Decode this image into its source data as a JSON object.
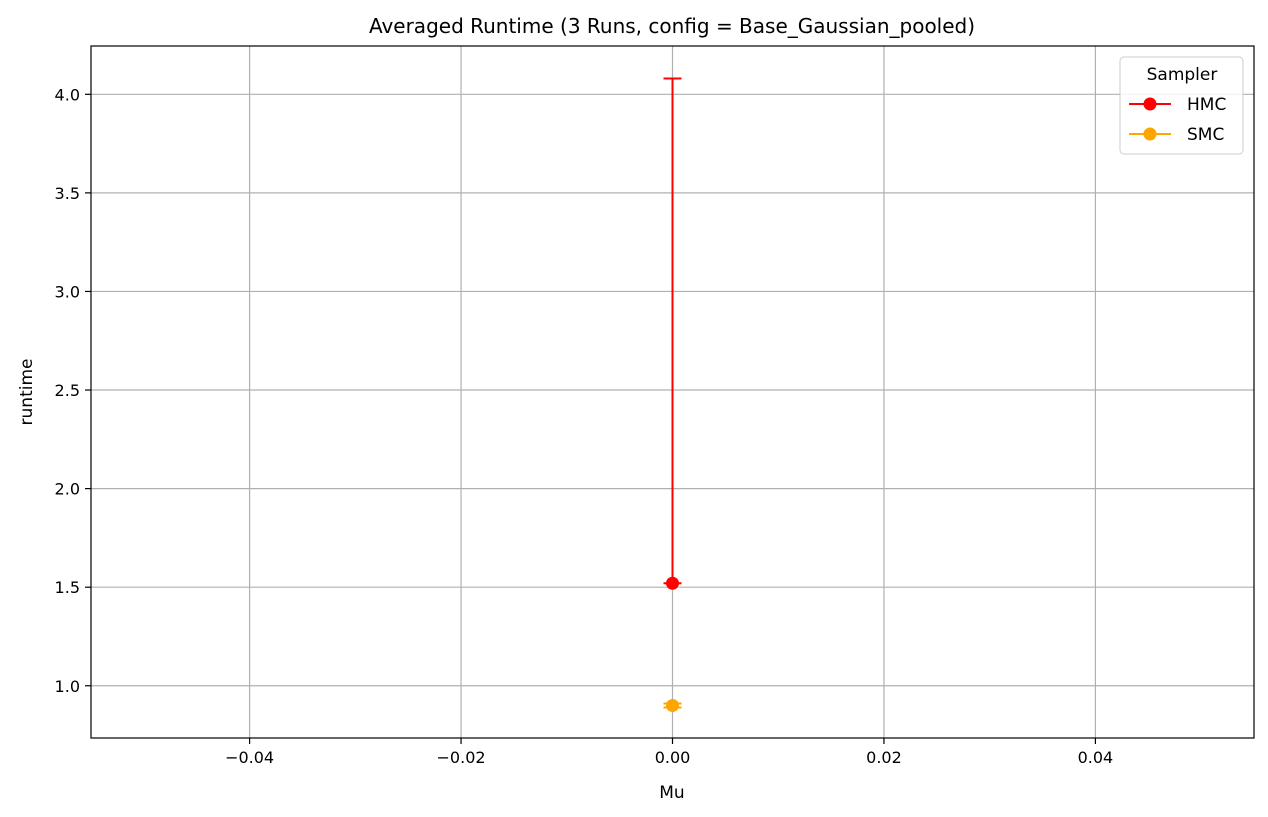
{
  "chart_data": {
    "type": "line",
    "title": "Averaged Runtime (3 Runs, config = Base_Gaussian_pooled)",
    "xlabel": "Mu",
    "ylabel": "runtime",
    "xlim": [
      -0.055,
      0.055
    ],
    "ylim": [
      0.735,
      4.245
    ],
    "xticks": [
      -0.04,
      -0.02,
      0.0,
      0.02,
      0.04
    ],
    "xtick_labels": [
      "−0.04",
      "−0.02",
      "0.00",
      "0.02",
      "0.04"
    ],
    "yticks": [
      1.0,
      1.5,
      2.0,
      2.5,
      3.0,
      3.5,
      4.0
    ],
    "ytick_labels": [
      "1.0",
      "1.5",
      "2.0",
      "2.5",
      "3.0",
      "3.5",
      "4.0"
    ],
    "grid": true,
    "legend": {
      "title": "Sampler",
      "position": "top-right"
    },
    "series": [
      {
        "name": "HMC",
        "color": "#ff0000",
        "x": [
          0.0
        ],
        "y": [
          1.52
        ],
        "err_low": [
          1.52
        ],
        "err_high": [
          4.08
        ]
      },
      {
        "name": "SMC",
        "color": "#ffa500",
        "x": [
          0.0
        ],
        "y": [
          0.9
        ],
        "err_low": [
          0.89
        ],
        "err_high": [
          0.91
        ]
      }
    ]
  }
}
